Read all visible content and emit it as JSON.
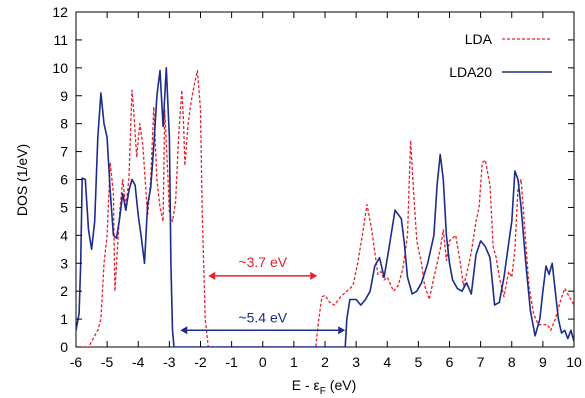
{
  "chart_data": {
    "type": "line",
    "title": "",
    "xlabel": "E - ε",
    "xlabel_sub": "F",
    "xlabel_unit": " (eV)",
    "ylabel": "DOS (1/eV)",
    "xlim": [
      -6,
      10
    ],
    "ylim": [
      0,
      12
    ],
    "xticks": [
      -6,
      -5,
      -4,
      -3,
      -2,
      -1,
      0,
      1,
      2,
      3,
      4,
      5,
      6,
      7,
      8,
      9,
      10
    ],
    "yticks": [
      0,
      1,
      2,
      3,
      4,
      5,
      6,
      7,
      8,
      9,
      10,
      11,
      12
    ],
    "grid": false,
    "legend_position": "top-right",
    "series": [
      {
        "name": "LDA",
        "color": "#e8202a",
        "dash": "dashed",
        "points": [
          [
            -6.0,
            0
          ],
          [
            -5.6,
            0
          ],
          [
            -5.3,
            0.6
          ],
          [
            -5.2,
            1.0
          ],
          [
            -5.1,
            3.0
          ],
          [
            -5.0,
            4.0
          ],
          [
            -4.9,
            6.6
          ],
          [
            -4.8,
            5.5
          ],
          [
            -4.75,
            2.0
          ],
          [
            -4.6,
            4.8
          ],
          [
            -4.5,
            6.0
          ],
          [
            -4.4,
            5.0
          ],
          [
            -4.3,
            6.0
          ],
          [
            -4.2,
            9.2
          ],
          [
            -4.15,
            8.5
          ],
          [
            -4.05,
            6.8
          ],
          [
            -3.95,
            8.0
          ],
          [
            -3.85,
            7.2
          ],
          [
            -3.7,
            4.7
          ],
          [
            -3.6,
            6.0
          ],
          [
            -3.5,
            8.6
          ],
          [
            -3.4,
            6.0
          ],
          [
            -3.3,
            5.0
          ],
          [
            -3.2,
            4.5
          ],
          [
            -3.15,
            8.5
          ],
          [
            -3.05,
            6.2
          ],
          [
            -3.0,
            4.8
          ],
          [
            -2.9,
            4.5
          ],
          [
            -2.8,
            5.2
          ],
          [
            -2.7,
            7.6
          ],
          [
            -2.6,
            9.2
          ],
          [
            -2.55,
            8.2
          ],
          [
            -2.5,
            6.5
          ],
          [
            -2.4,
            8.0
          ],
          [
            -2.3,
            8.8
          ],
          [
            -2.2,
            9.4
          ],
          [
            -2.1,
            9.9
          ],
          [
            -2.0,
            8.5
          ],
          [
            -1.95,
            5.0
          ],
          [
            -1.85,
            1.0
          ],
          [
            -1.75,
            0
          ],
          [
            1.7,
            0
          ],
          [
            1.8,
            1.0
          ],
          [
            1.9,
            1.8
          ],
          [
            2.0,
            1.85
          ],
          [
            2.15,
            1.6
          ],
          [
            2.3,
            1.5
          ],
          [
            2.5,
            1.8
          ],
          [
            2.7,
            2.0
          ],
          [
            2.9,
            2.2
          ],
          [
            3.05,
            3.0
          ],
          [
            3.2,
            4.0
          ],
          [
            3.35,
            5.1
          ],
          [
            3.5,
            4.2
          ],
          [
            3.6,
            3.4
          ],
          [
            3.7,
            2.6
          ],
          [
            3.8,
            2.7
          ],
          [
            3.9,
            2.4
          ],
          [
            4.0,
            2.5
          ],
          [
            4.2,
            2.0
          ],
          [
            4.35,
            2.2
          ],
          [
            4.5,
            2.8
          ],
          [
            4.65,
            4.0
          ],
          [
            4.75,
            7.4
          ],
          [
            4.85,
            5.5
          ],
          [
            4.95,
            3.8
          ],
          [
            5.1,
            3.0
          ],
          [
            5.2,
            2.2
          ],
          [
            5.35,
            1.7
          ],
          [
            5.5,
            2.5
          ],
          [
            5.6,
            3.0
          ],
          [
            5.7,
            3.5
          ],
          [
            5.8,
            4.2
          ],
          [
            5.9,
            3.1
          ],
          [
            6.0,
            3.8
          ],
          [
            6.2,
            4.0
          ],
          [
            6.35,
            3.0
          ],
          [
            6.45,
            2.2
          ],
          [
            6.55,
            2.6
          ],
          [
            6.7,
            3.4
          ],
          [
            6.85,
            4.5
          ],
          [
            6.95,
            5.0
          ],
          [
            7.05,
            6.6
          ],
          [
            7.15,
            6.7
          ],
          [
            7.3,
            5.8
          ],
          [
            7.4,
            3.6
          ],
          [
            7.5,
            3.2
          ],
          [
            7.6,
            2.5
          ],
          [
            7.75,
            1.8
          ],
          [
            7.9,
            2.7
          ],
          [
            8.0,
            2.5
          ],
          [
            8.1,
            3.5
          ],
          [
            8.2,
            5.7
          ],
          [
            8.3,
            6.0
          ],
          [
            8.4,
            4.5
          ],
          [
            8.55,
            2.2
          ],
          [
            8.7,
            1.2
          ],
          [
            8.85,
            0.8
          ],
          [
            9.0,
            0.8
          ],
          [
            9.15,
            0.8
          ],
          [
            9.25,
            0.6
          ],
          [
            9.4,
            1.0
          ],
          [
            9.55,
            1.6
          ],
          [
            9.7,
            2.1
          ],
          [
            9.85,
            1.8
          ],
          [
            10.0,
            1.5
          ]
        ]
      },
      {
        "name": "LDA20",
        "color": "#1c2c8c",
        "dash": "solid",
        "points": [
          [
            -6.0,
            0.6
          ],
          [
            -5.9,
            1.2
          ],
          [
            -5.85,
            3.0
          ],
          [
            -5.8,
            6.05
          ],
          [
            -5.7,
            6.0
          ],
          [
            -5.6,
            4.2
          ],
          [
            -5.5,
            3.5
          ],
          [
            -5.4,
            4.5
          ],
          [
            -5.3,
            7.5
          ],
          [
            -5.2,
            9.1
          ],
          [
            -5.1,
            8.0
          ],
          [
            -5.0,
            7.5
          ],
          [
            -4.9,
            5.6
          ],
          [
            -4.8,
            4.0
          ],
          [
            -4.7,
            3.9
          ],
          [
            -4.6,
            4.6
          ],
          [
            -4.5,
            5.5
          ],
          [
            -4.4,
            4.9
          ],
          [
            -4.3,
            5.6
          ],
          [
            -4.2,
            6.0
          ],
          [
            -4.1,
            5.8
          ],
          [
            -4.0,
            4.7
          ],
          [
            -3.9,
            3.9
          ],
          [
            -3.8,
            3.0
          ],
          [
            -3.7,
            5.1
          ],
          [
            -3.6,
            5.7
          ],
          [
            -3.5,
            7.2
          ],
          [
            -3.4,
            9.0
          ],
          [
            -3.3,
            9.9
          ],
          [
            -3.2,
            7.9
          ],
          [
            -3.1,
            10.0
          ],
          [
            -3.0,
            7.5
          ],
          [
            -2.95,
            3.0
          ],
          [
            -2.9,
            0.6
          ],
          [
            -2.85,
            0
          ],
          [
            2.65,
            0
          ],
          [
            2.7,
            1.0
          ],
          [
            2.8,
            1.7
          ],
          [
            3.0,
            1.7
          ],
          [
            3.15,
            1.5
          ],
          [
            3.3,
            1.7
          ],
          [
            3.45,
            2.0
          ],
          [
            3.6,
            2.9
          ],
          [
            3.75,
            3.2
          ],
          [
            3.9,
            2.5
          ],
          [
            4.05,
            3.5
          ],
          [
            4.25,
            4.9
          ],
          [
            4.45,
            4.6
          ],
          [
            4.55,
            3.7
          ],
          [
            4.65,
            2.5
          ],
          [
            4.8,
            1.9
          ],
          [
            4.95,
            2.0
          ],
          [
            5.1,
            2.3
          ],
          [
            5.3,
            3.0
          ],
          [
            5.5,
            4.0
          ],
          [
            5.6,
            5.8
          ],
          [
            5.7,
            6.9
          ],
          [
            5.8,
            6.0
          ],
          [
            5.9,
            4.0
          ],
          [
            6.0,
            3.0
          ],
          [
            6.1,
            2.4
          ],
          [
            6.25,
            2.1
          ],
          [
            6.4,
            2.0
          ],
          [
            6.55,
            2.3
          ],
          [
            6.7,
            1.9
          ],
          [
            6.85,
            3.3
          ],
          [
            7.0,
            3.8
          ],
          [
            7.15,
            3.6
          ],
          [
            7.3,
            3.2
          ],
          [
            7.45,
            1.5
          ],
          [
            7.6,
            1.6
          ],
          [
            7.75,
            2.5
          ],
          [
            7.9,
            3.7
          ],
          [
            8.0,
            4.5
          ],
          [
            8.1,
            6.3
          ],
          [
            8.2,
            6.0
          ],
          [
            8.3,
            5.0
          ],
          [
            8.45,
            3.0
          ],
          [
            8.6,
            1.3
          ],
          [
            8.75,
            0.4
          ],
          [
            8.9,
            1.0
          ],
          [
            9.0,
            2.0
          ],
          [
            9.1,
            2.9
          ],
          [
            9.2,
            2.6
          ],
          [
            9.3,
            3.0
          ],
          [
            9.4,
            2.0
          ],
          [
            9.5,
            1.0
          ],
          [
            9.6,
            0.5
          ],
          [
            9.7,
            0.6
          ],
          [
            9.8,
            0.3
          ],
          [
            9.9,
            0.6
          ],
          [
            10.0,
            0.2
          ]
        ]
      }
    ],
    "annotations": [
      {
        "text": "~3.7 eV",
        "color": "#e8202a",
        "x_from": -1.75,
        "x_to": 1.75,
        "y": 2.55,
        "text_x": 0.0,
        "text_y": 3.05
      },
      {
        "text": "~5.4 eV",
        "color": "#1c2c8c",
        "x_from": -2.65,
        "x_to": 2.65,
        "y": 0.6,
        "text_x": 0.0,
        "text_y": 1.05
      }
    ]
  }
}
